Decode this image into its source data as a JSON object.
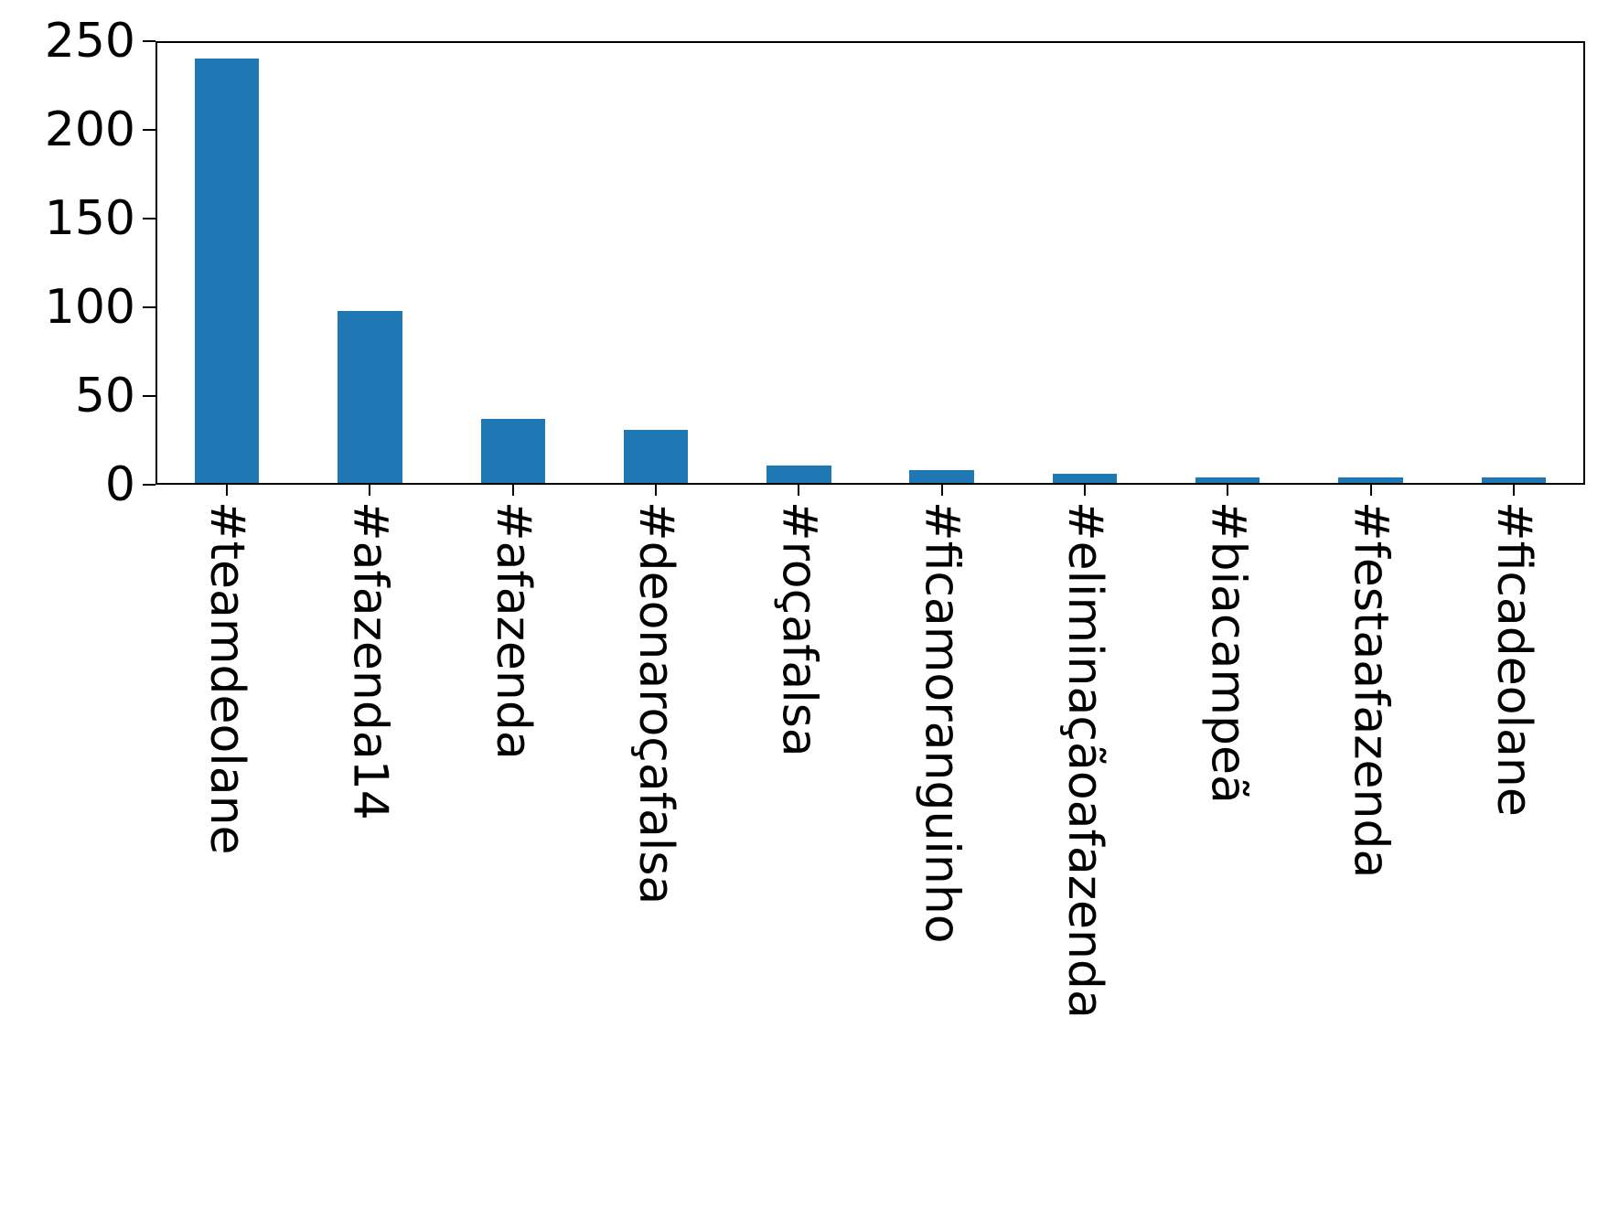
{
  "chart_data": {
    "type": "bar",
    "title": "",
    "xlabel": "",
    "ylabel": "",
    "categories": [
      "#teamdeolane",
      "#afazenda14",
      "#afazenda",
      "#deonaroçafalsa",
      "#roçafalsa",
      "#ficamoranguinho",
      "#eliminaçãoafazenda",
      "#biacampeã",
      "#festaafazenda",
      "#ficadeolane"
    ],
    "values": [
      240,
      98,
      37,
      31,
      11,
      8,
      6,
      4,
      4,
      4
    ],
    "ylim": [
      0,
      250
    ],
    "yticks": [
      0,
      50,
      100,
      150,
      200,
      250
    ],
    "bar_color": "#1f77b4",
    "grid": false,
    "legend": "none",
    "x_label_rotation_deg": 90
  }
}
